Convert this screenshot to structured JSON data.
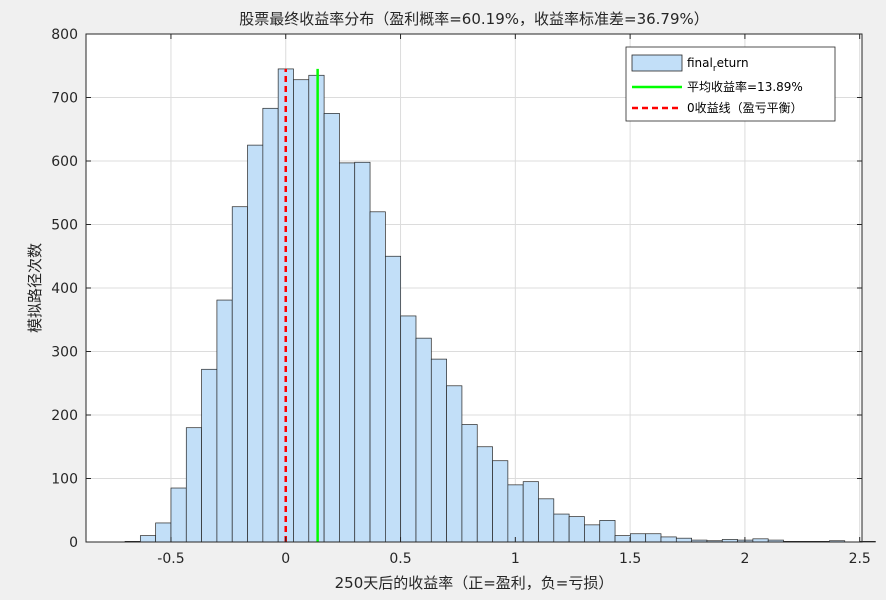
{
  "chart_data": {
    "type": "bar",
    "title": "股票最终收益率分布（盈利概率=60.19%，收益率标准差=36.79%）",
    "xlabel": "250天后的收益率（正=盈利，负=亏损）",
    "ylabel": "模拟路径次数",
    "xlim": [
      -0.87,
      2.51
    ],
    "ylim": [
      0,
      800
    ],
    "x_ticks": [
      -0.5,
      0,
      0.5,
      1,
      1.5,
      2,
      2.5
    ],
    "x_tick_labels": [
      "-0.5",
      "0",
      "0.5",
      "1",
      "1.5",
      "2",
      "2.5"
    ],
    "y_ticks": [
      0,
      100,
      200,
      300,
      400,
      500,
      600,
      700,
      800
    ],
    "y_tick_labels": [
      "0",
      "100",
      "200",
      "300",
      "400",
      "500",
      "600",
      "700",
      "800"
    ],
    "grid": true,
    "bin_start": -0.7,
    "bin_width": 0.0667,
    "series": [
      {
        "name_base": "final",
        "name_sub": "r",
        "name_rest": "eturn",
        "type": "histogram",
        "values": [
          1,
          10,
          30,
          85,
          180,
          272,
          381,
          528,
          625,
          683,
          745,
          728,
          735,
          675,
          597,
          598,
          520,
          450,
          356,
          321,
          288,
          246,
          185,
          150,
          128,
          90,
          95,
          68,
          44,
          40,
          27,
          34,
          10,
          13,
          13,
          8,
          6,
          3,
          2,
          4,
          3,
          5,
          3,
          1,
          1,
          1,
          2,
          0,
          1,
          0
        ],
        "color": "#c2dff8",
        "edge": "#262626"
      },
      {
        "name": "平均收益率=13.89%",
        "type": "vline",
        "x": 0.1389,
        "y_range": [
          0,
          745
        ],
        "color": "#00ff00"
      },
      {
        "name": "0收益线（盈亏平衡）",
        "type": "vline",
        "x": 0,
        "y_range": [
          0,
          745
        ],
        "color": "#ff0000",
        "dashed": true
      }
    ],
    "legend_position": "top-right"
  }
}
